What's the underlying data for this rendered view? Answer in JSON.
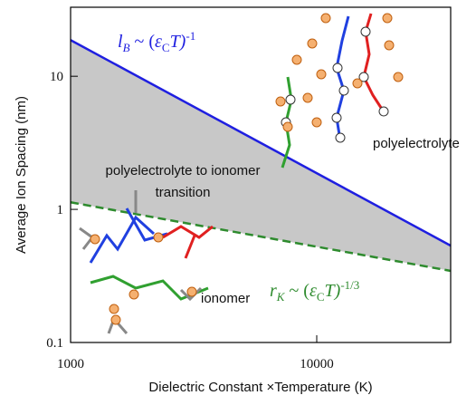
{
  "chart_data": {
    "type": "line",
    "x_label": "Dielectric Constant ×Temperature (K)",
    "y_label": "Average Ion Spacing (nm)",
    "x": [
      1000,
      35000
    ],
    "xlim": [
      1000,
      35000
    ],
    "ylim": [
      0.1,
      33
    ],
    "xticks": [
      1000,
      10000
    ],
    "yticks": [
      0.1,
      1,
      10
    ],
    "xscale": "log",
    "yscale": "log",
    "fill_between": "#c8c8c8",
    "series": [
      {
        "color": "#1f1fe0",
        "dashed": false,
        "values": [
          18.7,
          0.534
        ]
      },
      {
        "color": "#2e8b2e",
        "dashed": true,
        "values": [
          1.13,
          0.345
        ]
      }
    ],
    "annotations": {
      "blue_label": [
        "l",
        "B",
        " ~ (",
        "ε",
        "C",
        "T)",
        "-1"
      ],
      "green_label": [
        "r",
        "K",
        " ~ (",
        "ε",
        "C",
        "T)",
        "-1/3"
      ],
      "polyelectrolyte": "polyelectrolyte",
      "transition": [
        "polyelectrolyte to ionomer",
        "transition"
      ],
      "ionomer": "ionomer"
    }
  }
}
